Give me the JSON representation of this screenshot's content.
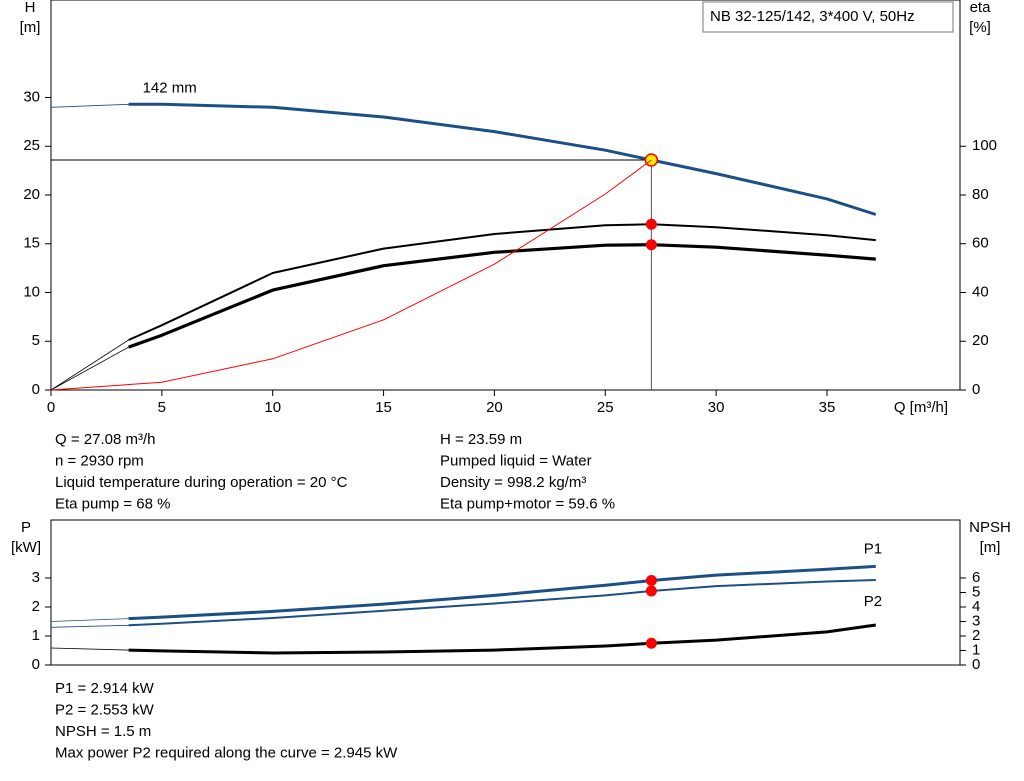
{
  "chart_data": [
    {
      "type": "line",
      "product": "NB 32-125/142, 3*400 V, 50Hz",
      "x_label": "Q [m³/h]",
      "y_label": [
        "H",
        "[m]"
      ],
      "y2_label": [
        "eta",
        "[%]"
      ],
      "xlim": [
        0,
        41
      ],
      "xticks": [
        0,
        5,
        10,
        15,
        20,
        25,
        30,
        35
      ],
      "ylim": [
        0,
        40
      ],
      "yticks": [
        0,
        5,
        10,
        15,
        20,
        25,
        30
      ],
      "y2lim": [
        0,
        160
      ],
      "y2ticks": [
        0,
        20,
        40,
        60,
        80,
        100
      ],
      "operating_point": {
        "x": 27.08,
        "y": 23.59
      },
      "series": [
        {
          "name": "142 mm",
          "color": "#1c4f86",
          "x": [
            0,
            3.5,
            5,
            10,
            15,
            20,
            25,
            27.08,
            30,
            35,
            37.2
          ],
          "values": [
            29.0,
            29.3,
            29.3,
            29.0,
            28.0,
            26.5,
            24.6,
            23.59,
            22.2,
            19.6,
            18.0
          ]
        },
        {
          "color": "#000000",
          "axis": "y2",
          "x": [
            0,
            3.5,
            5,
            10,
            15,
            20,
            25,
            27.08,
            30,
            35,
            37.2
          ],
          "values": [
            0,
            20.5,
            26.6,
            48,
            58,
            64,
            67.6,
            68,
            66.8,
            63.5,
            61.5
          ]
        },
        {
          "color": "#000000",
          "axis": "y2",
          "x": [
            0,
            3.5,
            5,
            10,
            15,
            20,
            25,
            27.08,
            30,
            35,
            37.2
          ],
          "values": [
            0,
            17.6,
            22.5,
            41,
            51,
            56.5,
            59.4,
            59.6,
            58.6,
            55.3,
            53.7
          ]
        },
        {
          "color": "#ff0000",
          "x": [
            0,
            5,
            10,
            15,
            20,
            25,
            27.08
          ],
          "values": [
            0,
            0.8,
            3.2,
            7.2,
            12.9,
            20.1,
            23.59
          ]
        }
      ],
      "results": [
        [
          "Q = 27.08 m³/h",
          "n = 2930 rpm",
          "Liquid temperature during operation = 20 °C",
          "Eta pump = 68 %"
        ],
        [
          "H = 23.59 m",
          "Pumped liquid = Water",
          "Density = 998.2 kg/m³",
          "Eta pump+motor = 59.6 %"
        ]
      ]
    },
    {
      "type": "line",
      "y_label": [
        "P",
        "[kW]"
      ],
      "y2_label": [
        "NPSH",
        "[m]"
      ],
      "xlim": [
        0,
        41
      ],
      "ylim": [
        0,
        5
      ],
      "yticks": [
        0,
        1,
        2,
        3
      ],
      "y2lim": [
        0,
        10
      ],
      "y2ticks": [
        0,
        1,
        2,
        3,
        4,
        5,
        6
      ],
      "operating_point": {
        "x": 27.08
      },
      "series": [
        {
          "name": "P1",
          "color": "#1c4f86",
          "x": [
            0,
            3.5,
            5,
            10,
            15,
            20,
            25,
            27.08,
            30,
            35,
            37.2
          ],
          "values": [
            1.5,
            1.6,
            1.65,
            1.85,
            2.1,
            2.4,
            2.75,
            2.914,
            3.1,
            3.3,
            3.4
          ]
        },
        {
          "name": "P2",
          "color": "#1c4f86",
          "x": [
            0,
            3.5,
            5,
            10,
            15,
            20,
            25,
            27.08,
            30,
            35,
            37.2
          ],
          "values": [
            1.3,
            1.37,
            1.42,
            1.62,
            1.87,
            2.12,
            2.4,
            2.553,
            2.72,
            2.88,
            2.93
          ]
        },
        {
          "color": "#000000",
          "axis": "y2",
          "x": [
            0,
            3.5,
            5,
            10,
            15,
            20,
            25,
            27.08,
            30,
            35,
            37.2
          ],
          "values": [
            1.17,
            1.03,
            0.97,
            0.83,
            0.9,
            1.03,
            1.31,
            1.5,
            1.72,
            2.28,
            2.76
          ]
        }
      ],
      "results": [
        [
          "P1 = 2.914 kW",
          "P2 = 2.553 kW",
          "NPSH = 1.5 m",
          "Max power P2 required along the curve = 2.945 kW"
        ]
      ]
    }
  ]
}
